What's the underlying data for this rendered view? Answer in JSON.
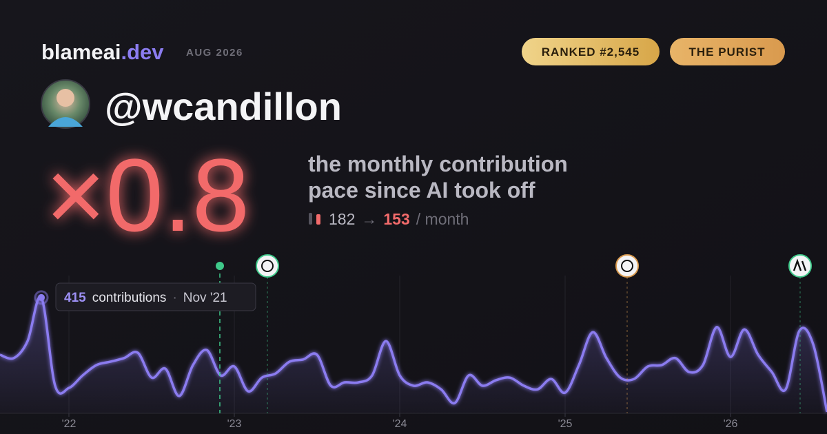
{
  "brand": {
    "name": "blameai",
    "tld": ".dev",
    "date": "AUG 2026"
  },
  "badges": [
    "RANKED #2,545",
    "THE PURIST"
  ],
  "handle": "@wcandillon",
  "multiplier": "×0.8",
  "description": [
    "the monthly contribution",
    "pace since AI took off"
  ],
  "pace": {
    "before": 182,
    "arrow": "→",
    "after": 153,
    "unit": "/ month"
  },
  "tooltip": {
    "unit": "contributions",
    "separator": "·",
    "date": "Nov '21"
  },
  "chart_data": {
    "type": "line",
    "categories": [
      null,
      null,
      null,
      null,
      null,
      "'22",
      null,
      null,
      null,
      null,
      null,
      null,
      null,
      null,
      null,
      null,
      null,
      "'23",
      null,
      null,
      null,
      null,
      null,
      null,
      null,
      null,
      null,
      null,
      null,
      "'24",
      null,
      null,
      null,
      null,
      null,
      null,
      null,
      null,
      null,
      null,
      null,
      "'25",
      null,
      null,
      null,
      null,
      null,
      null,
      null,
      null,
      null,
      null,
      null,
      "'26",
      null,
      null,
      null,
      null,
      null,
      null,
      null
    ],
    "values": [
      210,
      198,
      259,
      415,
      99,
      91,
      136,
      173,
      185,
      198,
      217,
      128,
      160,
      62,
      173,
      227,
      136,
      168,
      79,
      128,
      143,
      185,
      193,
      210,
      99,
      111,
      111,
      136,
      259,
      136,
      99,
      111,
      86,
      37,
      136,
      99,
      119,
      128,
      99,
      86,
      123,
      74,
      173,
      291,
      198,
      128,
      123,
      168,
      173,
      198,
      148,
      173,
      309,
      202,
      301,
      210,
      148,
      86,
      296,
      247,
      5
    ],
    "color": "#8b7cf0",
    "ylim": [
      0,
      500
    ],
    "grid": true
  }
}
